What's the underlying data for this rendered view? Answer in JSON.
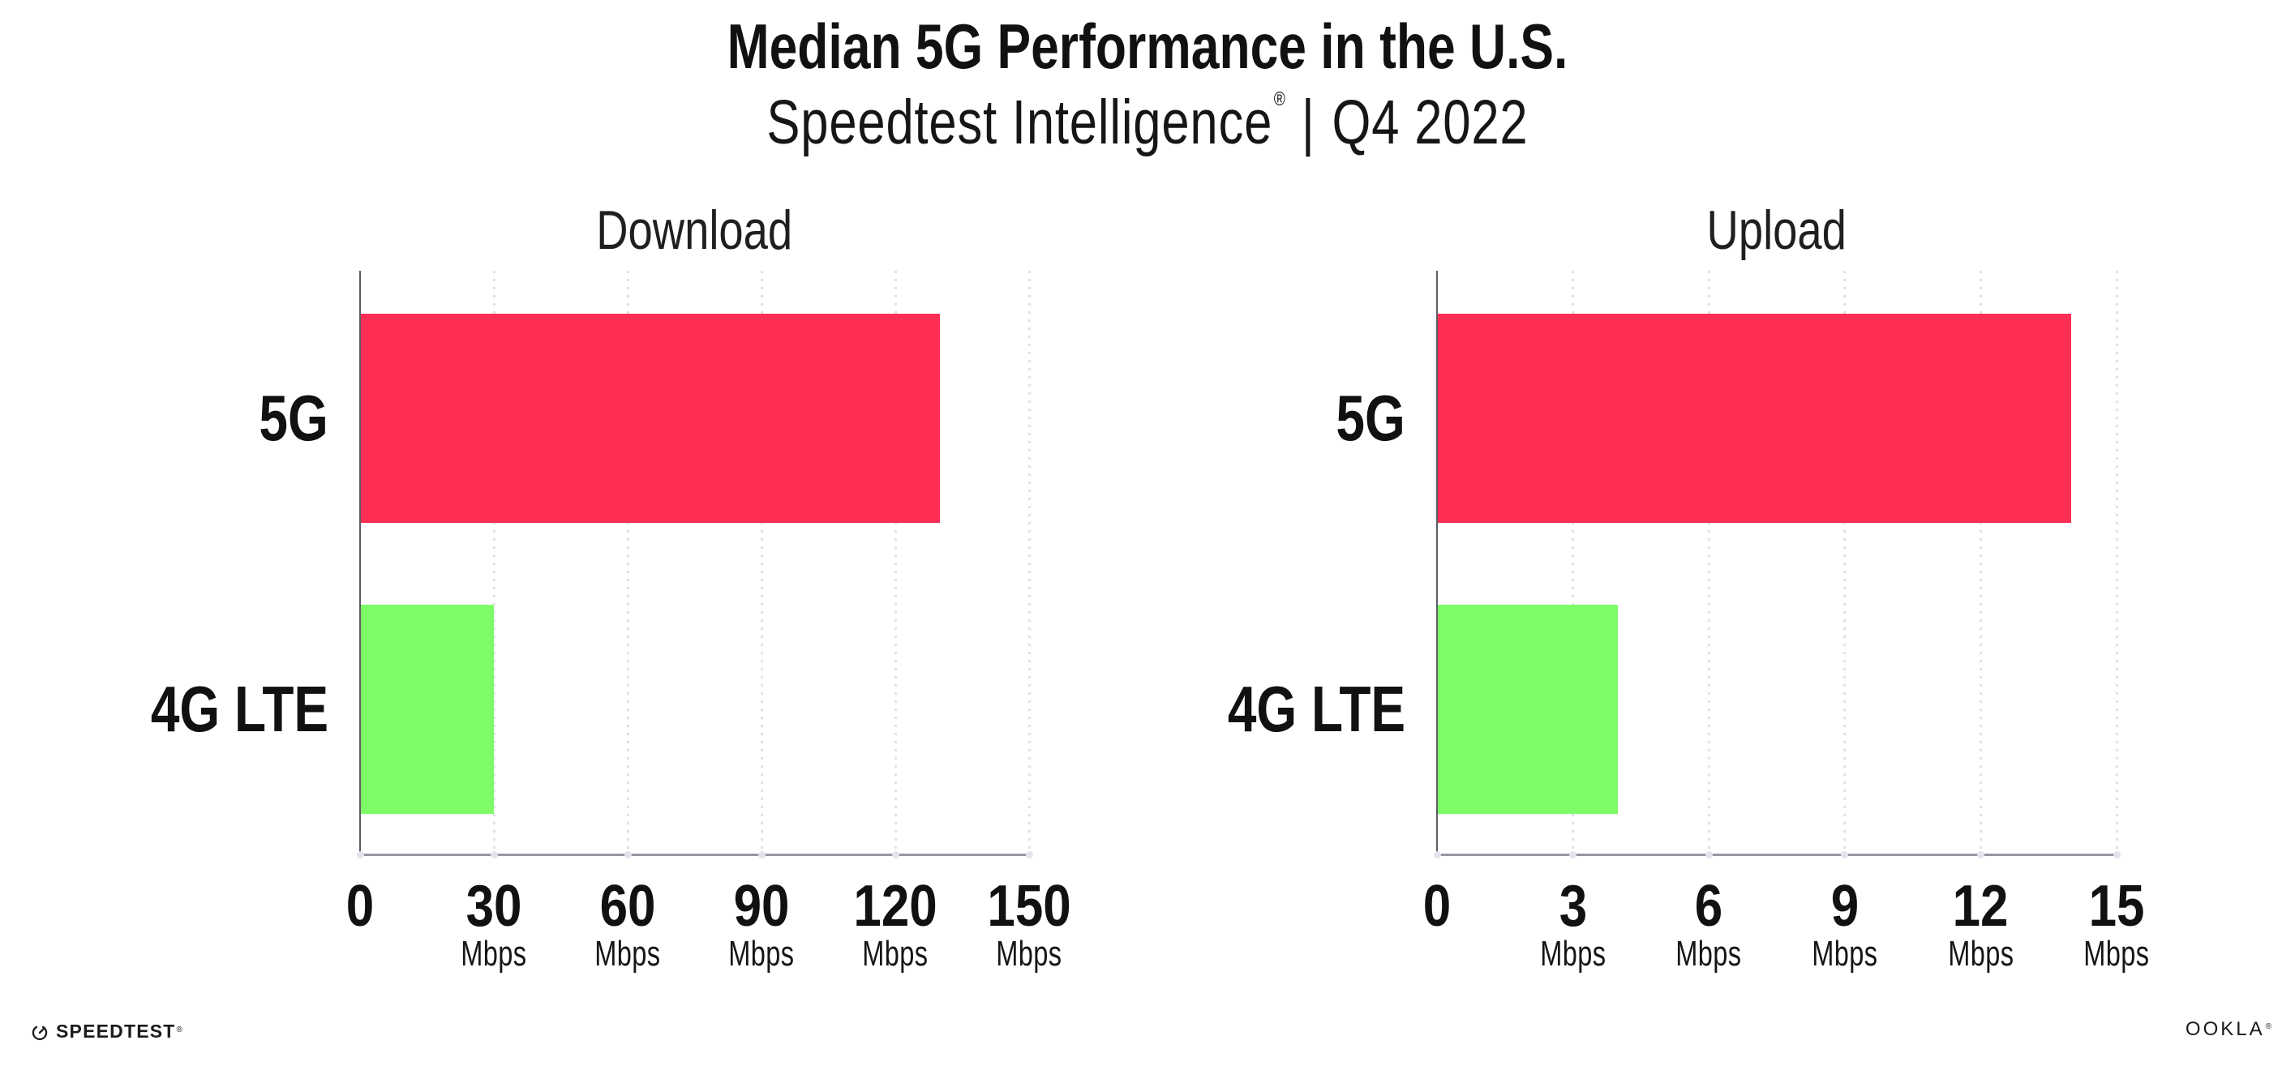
{
  "header": {
    "title": "Median 5G Performance in the U.S.",
    "subtitle_brand": "Speedtest Intelligence",
    "subtitle_trademark": "®",
    "subtitle_separator": "|",
    "subtitle_period": "Q4 2022"
  },
  "chart_data": [
    {
      "type": "bar",
      "orientation": "horizontal",
      "title": "Download",
      "categories": [
        "5G",
        "4G LTE"
      ],
      "values": [
        130,
        30
      ],
      "unit": "Mbps",
      "xlabel": "",
      "ylabel": "",
      "xlim": [
        0,
        150
      ],
      "xticks": [
        0,
        30,
        60,
        90,
        120,
        150
      ],
      "grid": "vertical-dotted",
      "legend": "none",
      "bar_colors": [
        "#FF2E55",
        "#7DFC67"
      ]
    },
    {
      "type": "bar",
      "orientation": "horizontal",
      "title": "Upload",
      "categories": [
        "5G",
        "4G LTE"
      ],
      "values": [
        14,
        4
      ],
      "unit": "Mbps",
      "xlabel": "",
      "ylabel": "",
      "xlim": [
        0,
        15
      ],
      "xticks": [
        0,
        3,
        6,
        9,
        12,
        15
      ],
      "grid": "vertical-dotted",
      "legend": "none",
      "bar_colors": [
        "#FF2E55",
        "#7DFC67"
      ]
    }
  ],
  "footer": {
    "speedtest_label": "SPEEDTEST",
    "speedtest_trademark": "®",
    "ookla_label": "OOKLA",
    "ookla_trademark": "®"
  },
  "colors": {
    "bar_5g": "#FF2E55",
    "bar_4g_lte": "#7DFC67",
    "axis_line": "#97979F",
    "y_axis_line": "#5D5D66",
    "grid_dot": "#E1E1EA",
    "tick_dot": "#E3E3ED",
    "text": "#111111"
  }
}
